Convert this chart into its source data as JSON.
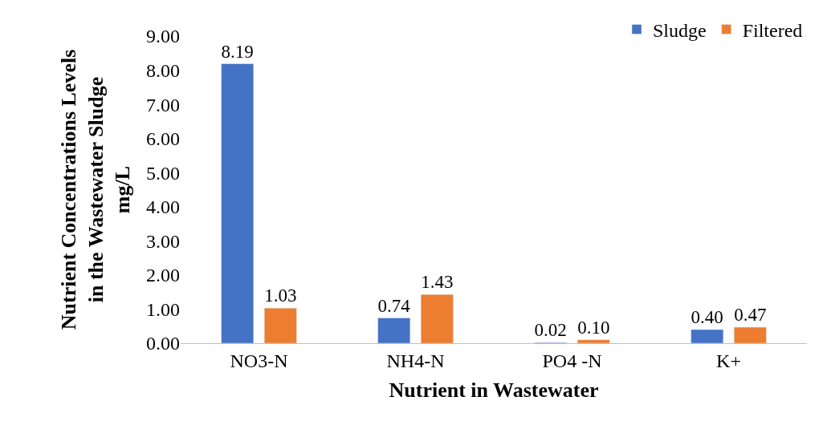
{
  "chart_data": {
    "type": "bar",
    "xlabel": "Nutrient in Wastewater",
    "ylabel": "Nutrient Concentrations Levels\nin the Wastewater Sludge\nmg/L",
    "categories": [
      "NO3-N",
      "NH4-N",
      "PO4 -N",
      "K+"
    ],
    "series": [
      {
        "name": "Sludge",
        "color": "#4472c4",
        "values": [
          8.19,
          0.74,
          0.02,
          0.4
        ],
        "value_labels": [
          "8.19",
          "0.74",
          "0.02",
          "0.40"
        ]
      },
      {
        "name": "Filtered",
        "color": "#ed7d31",
        "values": [
          1.03,
          1.43,
          0.1,
          0.47
        ],
        "value_labels": [
          "1.03",
          "1.43",
          "0.10",
          "0.47"
        ]
      }
    ],
    "ylim": [
      0,
      9
    ],
    "yticks": [
      {
        "value": 0,
        "label": "0.00"
      },
      {
        "value": 1,
        "label": "1.00"
      },
      {
        "value": 2,
        "label": "2.00"
      },
      {
        "value": 3,
        "label": "3.00"
      },
      {
        "value": 4,
        "label": "4.00"
      },
      {
        "value": 5,
        "label": "5.00"
      },
      {
        "value": 6,
        "label": "6.00"
      },
      {
        "value": 7,
        "label": "7.00"
      },
      {
        "value": 8,
        "label": "8.00"
      },
      {
        "value": 9,
        "label": "9.00"
      }
    ],
    "legend": "top right"
  }
}
